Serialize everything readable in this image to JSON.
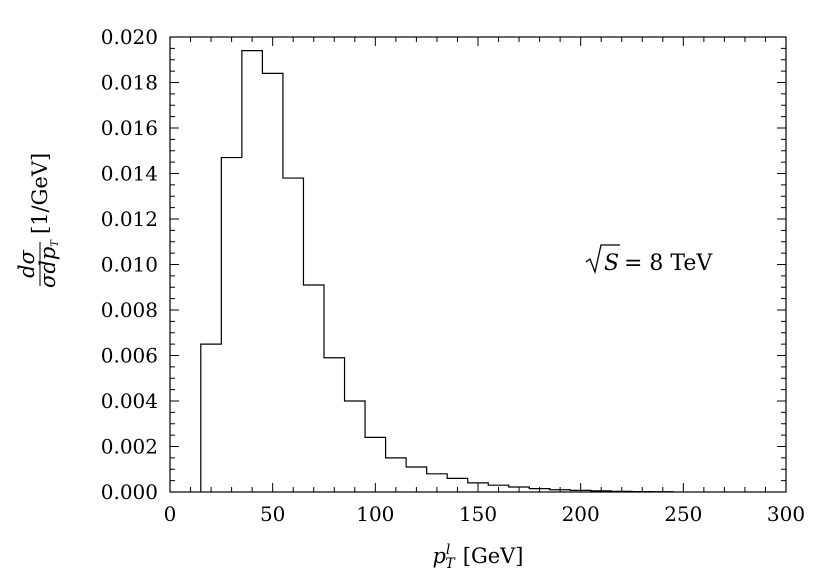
{
  "chart_data": {
    "type": "histogram",
    "title": "",
    "xlabel": {
      "main": "p",
      "sup": "l",
      "sub": "T",
      "unit": "[GeV]"
    },
    "ylabel": {
      "num": "dσ",
      "den_sigma": "σ",
      "den_d": "dp",
      "den_sub": "T",
      "unit": "[1/GeV]"
    },
    "annotation": {
      "sqrt_arg": "S",
      "rest": "= 8 TeV"
    },
    "xlim": [
      0,
      300
    ],
    "ylim": [
      0,
      0.02
    ],
    "xticks": [
      "0",
      "50",
      "100",
      "150",
      "200",
      "250",
      "300"
    ],
    "yticks": [
      "0.000",
      "0.002",
      "0.004",
      "0.006",
      "0.008",
      "0.010",
      "0.012",
      "0.014",
      "0.016",
      "0.018",
      "0.020"
    ],
    "bin_edges": [
      15,
      25,
      35,
      45,
      55,
      65,
      75,
      85,
      95,
      105,
      115,
      125,
      135,
      145,
      155,
      165,
      175,
      185,
      195,
      205,
      215,
      225,
      235,
      245
    ],
    "values": [
      0.0065,
      0.0147,
      0.0194,
      0.0184,
      0.0138,
      0.0091,
      0.0059,
      0.004,
      0.0024,
      0.0015,
      0.0011,
      0.0008,
      0.0006,
      0.0004,
      0.0003,
      0.00022,
      0.00015,
      0.0001,
      7e-05,
      5e-05,
      3e-05,
      2e-05,
      1e-05
    ],
    "grid": false,
    "legend": "none"
  }
}
